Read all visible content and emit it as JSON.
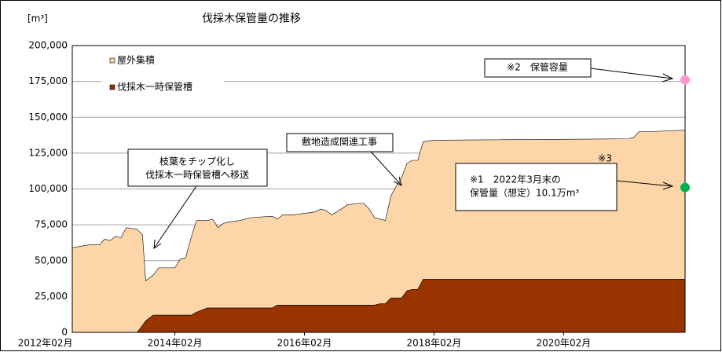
{
  "chart_data": {
    "type": "area",
    "stacked": true,
    "title": "伐採木保管量の推移",
    "unit_label": "[m³]",
    "x": [
      5,
      8,
      10,
      11,
      12,
      13,
      14,
      15,
      17,
      18,
      18.6,
      20,
      21,
      24,
      25,
      26,
      27,
      28,
      30,
      31,
      32,
      33,
      34,
      36,
      38,
      42,
      43,
      44,
      46,
      48,
      50,
      51,
      52,
      53,
      54,
      56,
      58,
      59,
      60,
      61,
      62,
      63,
      64,
      65,
      66,
      67,
      68,
      69,
      70,
      72,
      108,
      109,
      110,
      112,
      118.5
    ],
    "series": [
      {
        "name": "屋外集積",
        "color": "#fcd5a8",
        "values": [
          59000,
          61000,
          61000,
          65000,
          64000,
          67000,
          66000,
          73000,
          72000,
          63000,
          28000,
          28000,
          33000,
          33000,
          39000,
          40000,
          54000,
          64000,
          61000,
          62000,
          56000,
          59000,
          60000,
          61000,
          63000,
          64000,
          60000,
          63000,
          63000,
          64000,
          65000,
          67000,
          66000,
          63000,
          65000,
          70000,
          71000,
          71000,
          67000,
          61000,
          59000,
          58000,
          71000,
          78000,
          84000,
          89000,
          90000,
          90000,
          96000,
          97000,
          98000,
          99000,
          103000,
          103000,
          104000
        ]
      },
      {
        "name": "伐採木一時保管槽",
        "color": "#993300",
        "values": [
          0,
          0,
          0,
          0,
          0,
          0,
          0,
          0,
          0,
          5000,
          8000,
          12000,
          12000,
          12000,
          12000,
          12000,
          12000,
          14000,
          17000,
          17000,
          17000,
          17000,
          17000,
          17000,
          17000,
          17000,
          19000,
          19000,
          19000,
          19000,
          19000,
          19000,
          19000,
          19000,
          19000,
          19000,
          19000,
          19000,
          19000,
          19000,
          20000,
          20000,
          24000,
          24000,
          24000,
          29000,
          30000,
          30000,
          37000,
          37000,
          37000,
          37000,
          37000,
          37000,
          37000
        ]
      }
    ],
    "xlim": [
      5,
      118.5
    ],
    "xticks": [
      {
        "value": 0,
        "label": "2012年02月"
      },
      {
        "value": 24,
        "label": "2014年02月"
      },
      {
        "value": 48,
        "label": "2016年02月"
      },
      {
        "value": 72,
        "label": "2018年02月"
      },
      {
        "value": 96,
        "label": "2020年02月"
      }
    ],
    "ylim": [
      0,
      200000
    ],
    "yticks": [
      0,
      {
        "value": 25000,
        "label": "25,000"
      },
      {
        "value": 50000,
        "label": "50,000"
      },
      {
        "value": 75000,
        "label": "75,000"
      },
      {
        "value": 100000,
        "label": "100,000"
      },
      {
        "value": 125000,
        "label": "125,000"
      },
      {
        "value": 150000,
        "label": "150,000"
      },
      {
        "value": 175000,
        "label": "175,000"
      },
      {
        "value": 200000,
        "label": "200,000"
      }
    ],
    "grid": true,
    "legend": "upper left",
    "points": [
      {
        "x": 118.5,
        "y": 176000,
        "color": "#ff99cc"
      },
      {
        "x": 118.5,
        "y": 101000,
        "color": "#00b050"
      }
    ],
    "annotations": [
      {
        "lines": [
          "枝葉をチップ化し",
          "伐採木一時保管槽へ移送"
        ]
      },
      {
        "lines": [
          "敷地造成関連工事"
        ]
      },
      {
        "lines": [
          "※2　保管容量"
        ]
      },
      {
        "lines": [
          "※1　2022年3月末の",
          "保管量（想定）10.1万m³"
        ]
      },
      {
        "lines": [
          "※3"
        ]
      }
    ]
  }
}
